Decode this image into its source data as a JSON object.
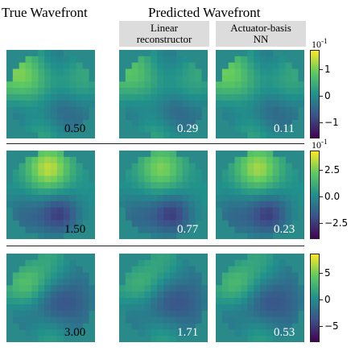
{
  "headers": {
    "true_title": "True Wavefront",
    "pred_title": "Predicted Wavefront",
    "col_linear": "Linear\nreconstructor",
    "col_nn": "Actuator-basis\nNN"
  },
  "rows": [
    {
      "values": [
        "0.50",
        "0.29",
        "0.11"
      ],
      "colorbar": {
        "exponent_base": "10",
        "exponent_power": "-1",
        "ticks": [
          "1",
          "0",
          "−1"
        ]
      }
    },
    {
      "values": [
        "1.50",
        "0.77",
        "0.23"
      ],
      "colorbar": {
        "exponent_base": "10",
        "exponent_power": "-1",
        "ticks": [
          "2.5",
          "0.0",
          "−2.5"
        ]
      }
    },
    {
      "values": [
        "3.00",
        "1.71",
        "0.53"
      ],
      "colorbar": {
        "exponent_base": "",
        "exponent_power": "",
        "ticks": [
          "5",
          "0",
          "−5"
        ]
      }
    }
  ],
  "colors": {
    "background_teal": "#2a8a8a",
    "colormap": [
      "#440154",
      "#3b528b",
      "#21918c",
      "#5ec962",
      "#fde725"
    ]
  }
}
